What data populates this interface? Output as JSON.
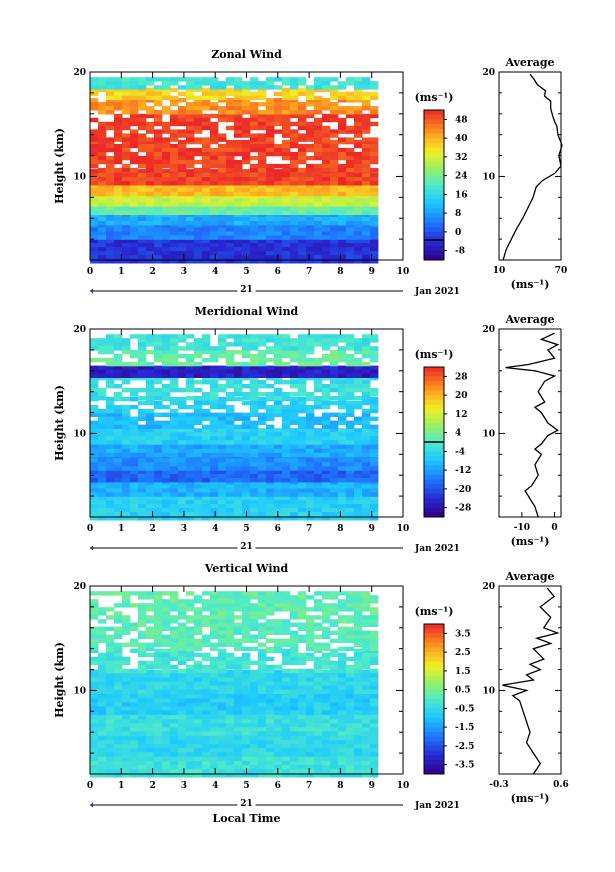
{
  "chart_data": [
    {
      "type": "heatmap",
      "title": "Zonal Wind",
      "ylabel": "Height (km)",
      "xlim": [
        0,
        10
      ],
      "ylim": [
        2,
        20
      ],
      "xticks": [
        "0",
        "1",
        "2",
        "3",
        "4",
        "5",
        "6",
        "7",
        "8",
        "9",
        "10"
      ],
      "yticks": [
        {
          "v": 20,
          "t": "20"
        },
        {
          "v": 10,
          "t": "10"
        }
      ],
      "date_day": "21",
      "date_month": "Jan 2021",
      "data_end": 9,
      "layers": [
        {
          "y0": 2.0,
          "y1": 4.0,
          "value": 0
        },
        {
          "y0": 4.0,
          "y1": 5.5,
          "value": 8
        },
        {
          "y0": 5.5,
          "y1": 6.5,
          "value": 12
        },
        {
          "y0": 6.5,
          "y1": 7.5,
          "value": 24
        },
        {
          "y0": 7.5,
          "y1": 8.3,
          "value": 32
        },
        {
          "y0": 8.3,
          "y1": 9.3,
          "value": 40
        },
        {
          "y0": 9.3,
          "y1": 10.7,
          "value": 50
        },
        {
          "y0": 10.7,
          "y1": 13.5,
          "value": 50,
          "gaps": true
        },
        {
          "y0": 13.5,
          "y1": 14.5,
          "value": 50,
          "gaps": true
        },
        {
          "y0": 14.5,
          "y1": 16.0,
          "value": 50,
          "gaps": true
        },
        {
          "y0": 16.0,
          "y1": 17.5,
          "value": 44,
          "gaps": true
        },
        {
          "y0": 17.5,
          "y1": 18.5,
          "value": 38,
          "gaps": true
        },
        {
          "y0": 18.5,
          "y1": 19.5,
          "value": 20,
          "gaps": true
        }
      ],
      "colorbar": {
        "unit": "(ms⁻¹)",
        "min": -8,
        "max": 52,
        "ticks": [
          "48",
          "40",
          "32",
          "24",
          "16",
          "8",
          "0",
          "-8"
        ],
        "line_at": 0
      },
      "profile": {
        "title": "Average",
        "xlim": [
          10,
          70
        ],
        "xticks": [
          "10",
          "70"
        ],
        "xunit": "(ms⁻¹)",
        "points": [
          [
            14,
            2
          ],
          [
            17,
            3
          ],
          [
            22,
            4
          ],
          [
            27,
            5
          ],
          [
            33,
            6
          ],
          [
            38,
            7
          ],
          [
            43,
            8
          ],
          [
            46,
            9
          ],
          [
            52,
            9.6
          ],
          [
            64,
            10.3
          ],
          [
            70,
            11
          ],
          [
            68,
            12
          ],
          [
            71,
            13
          ],
          [
            67,
            14
          ],
          [
            66,
            14.8
          ],
          [
            64,
            15.2
          ],
          [
            62,
            15.8
          ],
          [
            60,
            16.5
          ],
          [
            60,
            17.2
          ],
          [
            54,
            17.7
          ],
          [
            55,
            18.2
          ],
          [
            47,
            18.8
          ],
          [
            44,
            19.3
          ],
          [
            40,
            19.8
          ]
        ]
      }
    },
    {
      "type": "heatmap",
      "title": "Meridional Wind",
      "ylabel": "Height (km)",
      "xlim": [
        0,
        10
      ],
      "ylim": [
        2,
        20
      ],
      "xticks": [
        "0",
        "1",
        "2",
        "3",
        "4",
        "5",
        "6",
        "7",
        "8",
        "9",
        "10"
      ],
      "yticks": [
        {
          "v": 20,
          "t": "20"
        },
        {
          "v": 10,
          "t": "10"
        }
      ],
      "date_day": "21",
      "date_month": "Jan 2021",
      "data_end": 9,
      "layers": [
        {
          "y0": 2.0,
          "y1": 4.0,
          "value": -6
        },
        {
          "y0": 4.0,
          "y1": 5.5,
          "value": -10
        },
        {
          "y0": 5.5,
          "y1": 6.5,
          "value": -18
        },
        {
          "y0": 6.5,
          "y1": 8.0,
          "value": -14
        },
        {
          "y0": 8.0,
          "y1": 9.3,
          "value": -11
        },
        {
          "y0": 9.3,
          "y1": 10.5,
          "value": -6
        },
        {
          "y0": 10.5,
          "y1": 12.0,
          "value": -9,
          "gaps": true
        },
        {
          "y0": 12.0,
          "y1": 13.5,
          "value": -6,
          "gaps": true
        },
        {
          "y0": 13.5,
          "y1": 15.5,
          "value": -3,
          "gaps": true
        },
        {
          "y0": 15.5,
          "y1": 16.5,
          "value": -26
        },
        {
          "y0": 16.5,
          "y1": 18.0,
          "value": 2,
          "gaps": true
        },
        {
          "y0": 18.0,
          "y1": 19.5,
          "value": -2,
          "gaps": true
        }
      ],
      "colorbar": {
        "unit": "(ms⁻¹)",
        "min": -32,
        "max": 32,
        "ticks": [
          "28",
          "20",
          "12",
          "4",
          "-4",
          "-12",
          "-20",
          "-28"
        ],
        "line_at": 0
      },
      "profile": {
        "title": "Average",
        "xlim": [
          -17,
          2
        ],
        "xticks": [
          "-10",
          "0"
        ],
        "xunit": "(ms⁻¹)",
        "points": [
          [
            -5,
            2
          ],
          [
            -6,
            3
          ],
          [
            -8,
            4
          ],
          [
            -9,
            4.5
          ],
          [
            -7,
            5
          ],
          [
            -5,
            6
          ],
          [
            -6,
            7
          ],
          [
            -4,
            8
          ],
          [
            -6,
            8.5
          ],
          [
            -4,
            9
          ],
          [
            -2,
            9.8
          ],
          [
            1,
            10.3
          ],
          [
            -2,
            11
          ],
          [
            -4,
            12
          ],
          [
            -6,
            12.5
          ],
          [
            -3,
            13
          ],
          [
            -5,
            14
          ],
          [
            -3,
            15
          ],
          [
            0,
            15.5
          ],
          [
            -6,
            16
          ],
          [
            -15,
            16.3
          ],
          [
            -8,
            16.6
          ],
          [
            0,
            17.2
          ],
          [
            -2,
            18
          ],
          [
            1,
            18.5
          ],
          [
            -4,
            19
          ],
          [
            0,
            19.6
          ]
        ]
      }
    },
    {
      "type": "heatmap",
      "title": "Vertical Wind",
      "ylabel": "Height (km)",
      "xlabel": "Local Time",
      "xlim": [
        0,
        10
      ],
      "ylim": [
        2,
        20
      ],
      "xticks": [
        "0",
        "1",
        "2",
        "3",
        "4",
        "5",
        "6",
        "7",
        "8",
        "9",
        "10"
      ],
      "yticks": [
        {
          "v": 20,
          "t": "20"
        },
        {
          "v": 10,
          "t": "10"
        }
      ],
      "date_day": "21",
      "date_month": "Jan 2021",
      "data_end": 9,
      "layers": [
        {
          "y0": 2.0,
          "y1": 4.0,
          "value": -0.3
        },
        {
          "y0": 4.0,
          "y1": 6.0,
          "value": -0.6
        },
        {
          "y0": 6.0,
          "y1": 8.0,
          "value": -0.4
        },
        {
          "y0": 8.0,
          "y1": 10.0,
          "value": -0.8
        },
        {
          "y0": 10.0,
          "y1": 12.0,
          "value": -0.6
        },
        {
          "y0": 12.0,
          "y1": 14.0,
          "value": -0.2,
          "gaps": true
        },
        {
          "y0": 14.0,
          "y1": 16.5,
          "value": 0.1,
          "gaps": true
        },
        {
          "y0": 16.5,
          "y1": 19.5,
          "value": 0.2,
          "gaps": true
        }
      ],
      "colorbar": {
        "unit": "(ms⁻¹)",
        "min": -4,
        "max": 4,
        "ticks": [
          "3.5",
          "2.5",
          "1.5",
          "0.5",
          "-0.5",
          "-1.5",
          "-2.5",
          "-3.5"
        ]
      },
      "profile": {
        "title": "Average",
        "xlim": [
          -0.3,
          0.6
        ],
        "xticks": [
          "-0.3",
          "0.6"
        ],
        "xunit": "(ms⁻¹)",
        "points": [
          [
            0.2,
            2
          ],
          [
            0.3,
            3
          ],
          [
            0.2,
            4
          ],
          [
            0.1,
            5
          ],
          [
            0.15,
            6
          ],
          [
            0.1,
            7
          ],
          [
            0.05,
            8
          ],
          [
            0.0,
            9
          ],
          [
            -0.1,
            9.5
          ],
          [
            0.1,
            10
          ],
          [
            -0.25,
            10.5
          ],
          [
            0.2,
            11
          ],
          [
            0.1,
            11.5
          ],
          [
            0.3,
            12
          ],
          [
            0.15,
            12.5
          ],
          [
            0.35,
            13
          ],
          [
            0.2,
            14
          ],
          [
            0.45,
            14.5
          ],
          [
            0.25,
            15
          ],
          [
            0.55,
            15.5
          ],
          [
            0.35,
            16
          ],
          [
            0.45,
            17
          ],
          [
            0.3,
            18
          ],
          [
            0.5,
            19
          ],
          [
            0.4,
            19.8
          ]
        ]
      }
    }
  ]
}
